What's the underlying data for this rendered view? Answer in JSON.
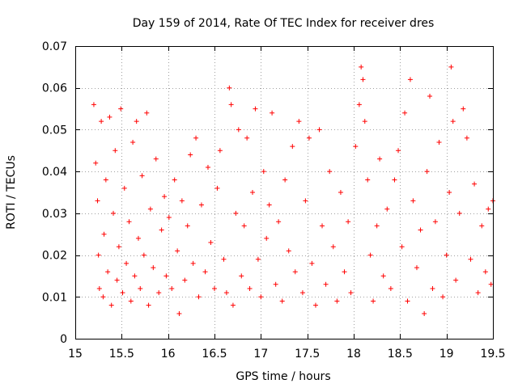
{
  "chart_data": {
    "type": "scatter",
    "title": "Day 159 of 2014, Rate Of TEC Index for receiver dres",
    "xlabel": "GPS time / hours",
    "ylabel": "ROTI / TECUs",
    "xlim": [
      15,
      19.5
    ],
    "ylim": [
      0,
      0.07
    ],
    "x_ticks": [
      15,
      15.5,
      16,
      16.5,
      17,
      17.5,
      18,
      18.5,
      19,
      19.5
    ],
    "x_tick_labels": [
      "15",
      "15.5",
      "16",
      "16.5",
      "17",
      "17.5",
      "18",
      "18.5",
      "19",
      "19.5"
    ],
    "y_ticks": [
      0,
      0.01,
      0.02,
      0.03,
      0.04,
      0.05,
      0.06,
      0.07
    ],
    "y_tick_labels": [
      "0",
      "0.01",
      "0.02",
      "0.03",
      "0.04",
      "0.05",
      "0.06",
      "0.07"
    ],
    "grid": true,
    "marker": "+",
    "color": "#ff0000",
    "series": [
      {
        "name": "ROTI",
        "points": [
          [
            15.2,
            0.056
          ],
          [
            15.22,
            0.042
          ],
          [
            15.24,
            0.033
          ],
          [
            15.25,
            0.02
          ],
          [
            15.26,
            0.012
          ],
          [
            15.28,
            0.052
          ],
          [
            15.3,
            0.01
          ],
          [
            15.31,
            0.025
          ],
          [
            15.33,
            0.038
          ],
          [
            15.35,
            0.016
          ],
          [
            15.37,
            0.053
          ],
          [
            15.39,
            0.008
          ],
          [
            15.41,
            0.03
          ],
          [
            15.43,
            0.045
          ],
          [
            15.45,
            0.014
          ],
          [
            15.47,
            0.022
          ],
          [
            15.49,
            0.055
          ],
          [
            15.51,
            0.011
          ],
          [
            15.53,
            0.036
          ],
          [
            15.55,
            0.018
          ],
          [
            15.58,
            0.028
          ],
          [
            15.6,
            0.009
          ],
          [
            15.62,
            0.047
          ],
          [
            15.64,
            0.015
          ],
          [
            15.66,
            0.052
          ],
          [
            15.68,
            0.024
          ],
          [
            15.7,
            0.012
          ],
          [
            15.72,
            0.039
          ],
          [
            15.74,
            0.02
          ],
          [
            15.77,
            0.054
          ],
          [
            15.79,
            0.008
          ],
          [
            15.81,
            0.031
          ],
          [
            15.84,
            0.017
          ],
          [
            15.87,
            0.043
          ],
          [
            15.9,
            0.011
          ],
          [
            15.93,
            0.026
          ],
          [
            15.96,
            0.034
          ],
          [
            15.98,
            0.015
          ],
          [
            16.01,
            0.029
          ],
          [
            16.04,
            0.012
          ],
          [
            16.07,
            0.038
          ],
          [
            16.1,
            0.021
          ],
          [
            16.12,
            0.006
          ],
          [
            16.15,
            0.033
          ],
          [
            16.18,
            0.014
          ],
          [
            16.21,
            0.027
          ],
          [
            16.24,
            0.044
          ],
          [
            16.27,
            0.018
          ],
          [
            16.3,
            0.048
          ],
          [
            16.33,
            0.01
          ],
          [
            16.36,
            0.032
          ],
          [
            16.4,
            0.016
          ],
          [
            16.43,
            0.041
          ],
          [
            16.46,
            0.023
          ],
          [
            16.5,
            0.012
          ],
          [
            16.53,
            0.036
          ],
          [
            16.56,
            0.045
          ],
          [
            16.6,
            0.019
          ],
          [
            16.63,
            0.011
          ],
          [
            16.66,
            0.06
          ],
          [
            16.68,
            0.056
          ],
          [
            16.7,
            0.008
          ],
          [
            16.73,
            0.03
          ],
          [
            16.76,
            0.05
          ],
          [
            16.79,
            0.015
          ],
          [
            16.82,
            0.027
          ],
          [
            16.85,
            0.048
          ],
          [
            16.88,
            0.012
          ],
          [
            16.91,
            0.035
          ],
          [
            16.94,
            0.055
          ],
          [
            16.97,
            0.019
          ],
          [
            17.0,
            0.01
          ],
          [
            17.03,
            0.04
          ],
          [
            17.06,
            0.024
          ],
          [
            17.09,
            0.032
          ],
          [
            17.12,
            0.054
          ],
          [
            17.16,
            0.013
          ],
          [
            17.19,
            0.028
          ],
          [
            17.23,
            0.009
          ],
          [
            17.26,
            0.038
          ],
          [
            17.3,
            0.021
          ],
          [
            17.34,
            0.046
          ],
          [
            17.37,
            0.016
          ],
          [
            17.41,
            0.052
          ],
          [
            17.45,
            0.011
          ],
          [
            17.48,
            0.033
          ],
          [
            17.52,
            0.048
          ],
          [
            17.55,
            0.018
          ],
          [
            17.59,
            0.008
          ],
          [
            17.63,
            0.05
          ],
          [
            17.66,
            0.027
          ],
          [
            17.7,
            0.013
          ],
          [
            17.74,
            0.04
          ],
          [
            17.78,
            0.022
          ],
          [
            17.82,
            0.009
          ],
          [
            17.86,
            0.035
          ],
          [
            17.9,
            0.016
          ],
          [
            17.94,
            0.028
          ],
          [
            17.97,
            0.011
          ],
          [
            18.02,
            0.046
          ],
          [
            18.06,
            0.056
          ],
          [
            18.08,
            0.065
          ],
          [
            18.1,
            0.062
          ],
          [
            18.12,
            0.052
          ],
          [
            18.15,
            0.038
          ],
          [
            18.18,
            0.02
          ],
          [
            18.21,
            0.009
          ],
          [
            18.25,
            0.027
          ],
          [
            18.28,
            0.043
          ],
          [
            18.32,
            0.015
          ],
          [
            18.36,
            0.031
          ],
          [
            18.4,
            0.012
          ],
          [
            18.44,
            0.038
          ],
          [
            18.48,
            0.045
          ],
          [
            18.52,
            0.022
          ],
          [
            18.55,
            0.054
          ],
          [
            18.58,
            0.009
          ],
          [
            18.61,
            0.062
          ],
          [
            18.64,
            0.033
          ],
          [
            18.68,
            0.017
          ],
          [
            18.72,
            0.026
          ],
          [
            18.76,
            0.006
          ],
          [
            18.79,
            0.04
          ],
          [
            18.82,
            0.058
          ],
          [
            18.85,
            0.012
          ],
          [
            18.88,
            0.028
          ],
          [
            18.92,
            0.047
          ],
          [
            18.96,
            0.01
          ],
          [
            19.0,
            0.02
          ],
          [
            19.03,
            0.035
          ],
          [
            19.05,
            0.065
          ],
          [
            19.07,
            0.052
          ],
          [
            19.1,
            0.014
          ],
          [
            19.14,
            0.03
          ],
          [
            19.18,
            0.055
          ],
          [
            19.22,
            0.048
          ],
          [
            19.26,
            0.019
          ],
          [
            19.3,
            0.037
          ],
          [
            19.34,
            0.011
          ],
          [
            19.38,
            0.027
          ],
          [
            19.42,
            0.016
          ],
          [
            19.45,
            0.031
          ],
          [
            19.48,
            0.013
          ],
          [
            19.5,
            0.033
          ]
        ]
      }
    ]
  }
}
